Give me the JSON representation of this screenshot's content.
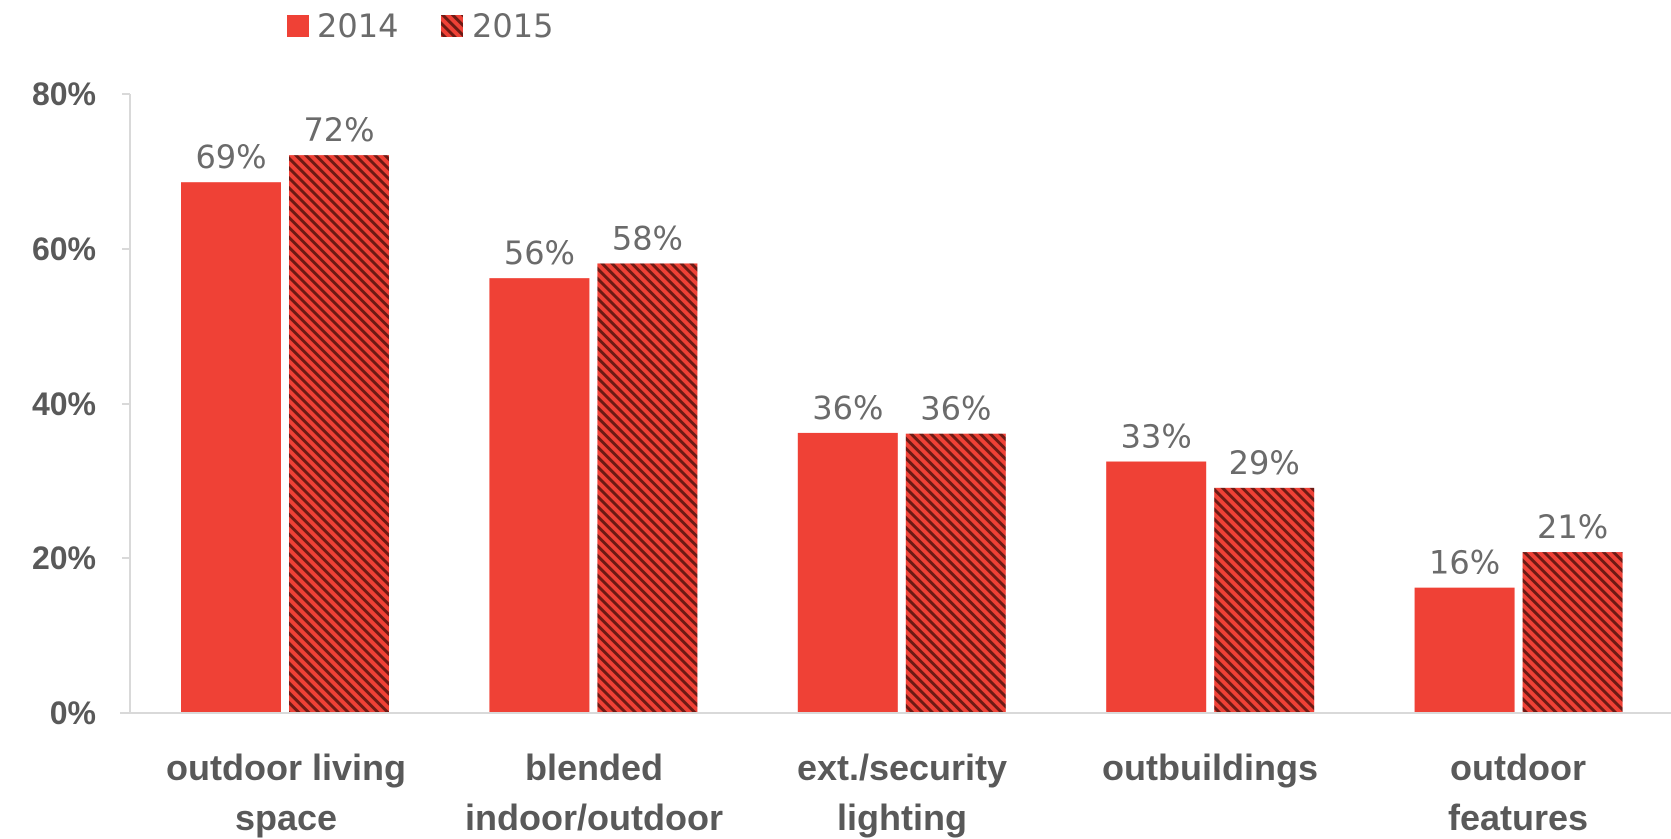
{
  "colors": {
    "bar": "#ef4136",
    "hatch_dark": "#6e1a14",
    "axis": "#d9d9d9",
    "text": "#595959"
  },
  "legend": {
    "items": [
      {
        "label": "2014",
        "style": "solid"
      },
      {
        "label": "2015",
        "style": "hatched"
      }
    ]
  },
  "chart_data": {
    "type": "bar",
    "categories": [
      [
        "outdoor living",
        "space"
      ],
      [
        "blended",
        "indoor/outdoor"
      ],
      [
        "ext./security",
        "lighting"
      ],
      [
        "outbuildings"
      ],
      [
        "outdoor",
        "features"
      ]
    ],
    "series": [
      {
        "name": "2014",
        "values": [
          69,
          56,
          36,
          33,
          16
        ],
        "labels": [
          "69%",
          "56%",
          "36%",
          "33%",
          "16%"
        ]
      },
      {
        "name": "2015",
        "values": [
          72,
          58,
          36,
          29,
          21
        ],
        "labels": [
          "72%",
          "58%",
          "36%",
          "29%",
          "21%"
        ]
      }
    ],
    "actual_values": {
      "2014": [
        68.6,
        56.2,
        36.2,
        32.5,
        16.2
      ],
      "2015": [
        72.1,
        58.1,
        36.1,
        29.1,
        20.8
      ]
    },
    "ylim": [
      0,
      80
    ],
    "yticks": [
      "0%",
      "20%",
      "40%",
      "60%",
      "80%"
    ],
    "ytick_values": [
      0,
      20,
      40,
      60,
      80
    ],
    "title": "",
    "xlabel": "",
    "ylabel": "",
    "legend_position": "top-left",
    "grid": false
  }
}
